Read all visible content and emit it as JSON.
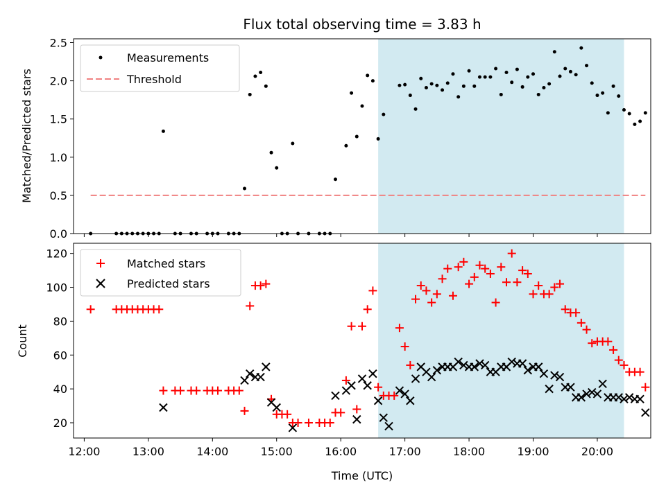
{
  "chart_data": [
    {
      "type": "scatter",
      "title": "Flux total observing time = 3.83 h",
      "ylabel": "Matched/Predicted stars",
      "xlim": [
        "11:50",
        "20:50"
      ],
      "ylim": [
        0,
        2.55
      ],
      "yticks": [
        0.0,
        0.5,
        1.0,
        1.5,
        2.0,
        2.5
      ],
      "ytick_labels": [
        "0.0",
        "0.5",
        "1.0",
        "1.5",
        "2.0",
        "2.5"
      ],
      "legend_position": "upper-left",
      "highlight_span": {
        "from": "16:35",
        "to": "20:25",
        "color": "#add8e6"
      },
      "series": [
        {
          "name": "Measurements",
          "marker": "dot",
          "color": "#000000",
          "points": [
            [
              "12:06",
              0
            ],
            [
              "12:30",
              0
            ],
            [
              "12:35",
              0
            ],
            [
              "12:40",
              0
            ],
            [
              "12:45",
              0
            ],
            [
              "12:50",
              0
            ],
            [
              "12:55",
              0
            ],
            [
              "13:00",
              0
            ],
            [
              "13:05",
              0
            ],
            [
              "13:10",
              0
            ],
            [
              "13:14",
              1.34
            ],
            [
              "13:25",
              0
            ],
            [
              "13:30",
              0
            ],
            [
              "13:40",
              0
            ],
            [
              "13:45",
              0
            ],
            [
              "13:55",
              0
            ],
            [
              "14:00",
              0
            ],
            [
              "14:05",
              0
            ],
            [
              "14:15",
              0
            ],
            [
              "14:20",
              0
            ],
            [
              "14:25",
              0
            ],
            [
              "14:30",
              0.59
            ],
            [
              "14:35",
              1.82
            ],
            [
              "14:40",
              2.06
            ],
            [
              "14:45",
              2.11
            ],
            [
              "14:50",
              1.93
            ],
            [
              "14:55",
              1.06
            ],
            [
              "15:00",
              0.86
            ],
            [
              "15:05",
              0
            ],
            [
              "15:10",
              0
            ],
            [
              "15:15",
              1.18
            ],
            [
              "15:20",
              0
            ],
            [
              "15:30",
              0
            ],
            [
              "15:40",
              0
            ],
            [
              "15:45",
              0
            ],
            [
              "15:50",
              0
            ],
            [
              "15:55",
              0.71
            ],
            [
              "16:05",
              1.15
            ],
            [
              "16:10",
              1.84
            ],
            [
              "16:15",
              1.27
            ],
            [
              "16:20",
              1.67
            ],
            [
              "16:25",
              2.07
            ],
            [
              "16:30",
              2.0
            ],
            [
              "16:35",
              1.24
            ],
            [
              "16:40",
              1.56
            ],
            [
              "16:55",
              1.94
            ],
            [
              "17:00",
              1.95
            ],
            [
              "17:05",
              1.81
            ],
            [
              "17:10",
              1.63
            ],
            [
              "17:15",
              2.03
            ],
            [
              "17:20",
              1.91
            ],
            [
              "17:25",
              1.96
            ],
            [
              "17:30",
              1.94
            ],
            [
              "17:35",
              1.88
            ],
            [
              "17:40",
              1.97
            ],
            [
              "17:45",
              2.09
            ],
            [
              "17:50",
              1.79
            ],
            [
              "17:55",
              1.93
            ],
            [
              "18:00",
              2.13
            ],
            [
              "18:05",
              1.93
            ],
            [
              "18:10",
              2.05
            ],
            [
              "18:15",
              2.05
            ],
            [
              "18:20",
              2.05
            ],
            [
              "18:25",
              2.16
            ],
            [
              "18:30",
              1.82
            ],
            [
              "18:35",
              2.11
            ],
            [
              "18:40",
              1.98
            ],
            [
              "18:45",
              2.15
            ],
            [
              "18:50",
              1.92
            ],
            [
              "18:55",
              2.05
            ],
            [
              "19:00",
              2.09
            ],
            [
              "19:05",
              1.82
            ],
            [
              "19:10",
              1.91
            ],
            [
              "19:15",
              1.96
            ],
            [
              "19:20",
              2.38
            ],
            [
              "19:25",
              2.06
            ],
            [
              "19:30",
              2.16
            ],
            [
              "19:35",
              2.12
            ],
            [
              "19:40",
              2.08
            ],
            [
              "19:45",
              2.43
            ],
            [
              "19:50",
              2.2
            ],
            [
              "19:55",
              1.97
            ],
            [
              "20:00",
              1.81
            ],
            [
              "20:05",
              1.84
            ],
            [
              "20:10",
              1.58
            ],
            [
              "20:15",
              1.93
            ],
            [
              "20:20",
              1.8
            ],
            [
              "20:25",
              1.62
            ],
            [
              "20:30",
              1.57
            ],
            [
              "20:35",
              1.43
            ],
            [
              "20:40",
              1.47
            ],
            [
              "20:45",
              1.58
            ]
          ]
        },
        {
          "name": "Threshold",
          "style": "dashed-line",
          "color": "#f08080",
          "x_range": [
            "12:06",
            "20:45"
          ],
          "y": 0.5
        }
      ]
    },
    {
      "type": "scatter",
      "ylabel": "Count",
      "xlabel": "Time (UTC)",
      "xlim": [
        "11:50",
        "20:50"
      ],
      "xticks": [
        "12:00",
        "13:00",
        "14:00",
        "15:00",
        "16:00",
        "17:00",
        "18:00",
        "19:00",
        "20:00"
      ],
      "ylim": [
        11,
        126
      ],
      "yticks": [
        20,
        40,
        60,
        80,
        100,
        120
      ],
      "ytick_labels": [
        "20",
        "40",
        "60",
        "80",
        "100",
        "120"
      ],
      "legend_position": "upper-left",
      "highlight_span": {
        "from": "16:35",
        "to": "20:25",
        "color": "#add8e6"
      },
      "series": [
        {
          "name": "Matched stars",
          "marker": "plus",
          "color": "#ff0000",
          "points": [
            [
              "12:06",
              87
            ],
            [
              "12:30",
              87
            ],
            [
              "12:35",
              87
            ],
            [
              "12:40",
              87
            ],
            [
              "12:45",
              87
            ],
            [
              "12:50",
              87
            ],
            [
              "12:55",
              87
            ],
            [
              "13:00",
              87
            ],
            [
              "13:05",
              87
            ],
            [
              "13:10",
              87
            ],
            [
              "13:14",
              39
            ],
            [
              "13:25",
              39
            ],
            [
              "13:30",
              39
            ],
            [
              "13:40",
              39
            ],
            [
              "13:45",
              39
            ],
            [
              "13:55",
              39
            ],
            [
              "14:00",
              39
            ],
            [
              "14:05",
              39
            ],
            [
              "14:15",
              39
            ],
            [
              "14:20",
              39
            ],
            [
              "14:25",
              39
            ],
            [
              "14:30",
              27
            ],
            [
              "14:35",
              89
            ],
            [
              "14:40",
              101
            ],
            [
              "14:45",
              101
            ],
            [
              "14:50",
              102
            ],
            [
              "14:55",
              34
            ],
            [
              "15:00",
              25
            ],
            [
              "15:05",
              25
            ],
            [
              "15:10",
              25
            ],
            [
              "15:15",
              20
            ],
            [
              "15:20",
              20
            ],
            [
              "15:30",
              20
            ],
            [
              "15:40",
              20
            ],
            [
              "15:45",
              20
            ],
            [
              "15:50",
              20
            ],
            [
              "15:55",
              26
            ],
            [
              "16:00",
              26
            ],
            [
              "16:05",
              45
            ],
            [
              "16:10",
              77
            ],
            [
              "16:15",
              28
            ],
            [
              "16:20",
              77
            ],
            [
              "16:25",
              87
            ],
            [
              "16:30",
              98
            ],
            [
              "16:35",
              41
            ],
            [
              "16:40",
              36
            ],
            [
              "16:45",
              36
            ],
            [
              "16:50",
              36
            ],
            [
              "16:55",
              76
            ],
            [
              "17:00",
              65
            ],
            [
              "17:05",
              54
            ],
            [
              "17:10",
              93
            ],
            [
              "17:15",
              101
            ],
            [
              "17:20",
              98
            ],
            [
              "17:25",
              91
            ],
            [
              "17:30",
              96
            ],
            [
              "17:35",
              105
            ],
            [
              "17:40",
              111
            ],
            [
              "17:45",
              95
            ],
            [
              "17:50",
              112
            ],
            [
              "17:55",
              115
            ],
            [
              "18:00",
              102
            ],
            [
              "18:05",
              106
            ],
            [
              "18:10",
              113
            ],
            [
              "18:15",
              111
            ],
            [
              "18:20",
              108
            ],
            [
              "18:25",
              91
            ],
            [
              "18:30",
              112
            ],
            [
              "18:35",
              103
            ],
            [
              "18:40",
              120
            ],
            [
              "18:45",
              103
            ],
            [
              "18:50",
              110
            ],
            [
              "18:55",
              108
            ],
            [
              "19:00",
              96
            ],
            [
              "19:05",
              101
            ],
            [
              "19:10",
              96
            ],
            [
              "19:15",
              96
            ],
            [
              "19:20",
              100
            ],
            [
              "19:25",
              102
            ],
            [
              "19:30",
              87
            ],
            [
              "19:35",
              85
            ],
            [
              "19:40",
              85
            ],
            [
              "19:45",
              79
            ],
            [
              "19:50",
              75
            ],
            [
              "19:55",
              67
            ],
            [
              "20:00",
              68
            ],
            [
              "20:05",
              68
            ],
            [
              "20:10",
              68
            ],
            [
              "20:15",
              63
            ],
            [
              "20:20",
              57
            ],
            [
              "20:25",
              54
            ],
            [
              "20:30",
              50
            ],
            [
              "20:35",
              50
            ],
            [
              "20:40",
              50
            ],
            [
              "20:45",
              41
            ]
          ]
        },
        {
          "name": "Predicted stars",
          "marker": "x",
          "color": "#000000",
          "points": [
            [
              "13:14",
              29
            ],
            [
              "14:30",
              45
            ],
            [
              "14:35",
              49
            ],
            [
              "14:40",
              47
            ],
            [
              "14:45",
              47
            ],
            [
              "14:50",
              53
            ],
            [
              "14:55",
              32
            ],
            [
              "15:00",
              29
            ],
            [
              "15:15",
              17
            ],
            [
              "15:55",
              36
            ],
            [
              "16:05",
              39
            ],
            [
              "16:10",
              42
            ],
            [
              "16:15",
              22
            ],
            [
              "16:20",
              46
            ],
            [
              "16:25",
              42
            ],
            [
              "16:30",
              49
            ],
            [
              "16:35",
              33
            ],
            [
              "16:40",
              23
            ],
            [
              "16:45",
              18
            ],
            [
              "16:55",
              39
            ],
            [
              "17:00",
              37
            ],
            [
              "17:05",
              33
            ],
            [
              "17:10",
              46
            ],
            [
              "17:15",
              53
            ],
            [
              "17:20",
              50
            ],
            [
              "17:25",
              47
            ],
            [
              "17:30",
              51
            ],
            [
              "17:35",
              53
            ],
            [
              "17:40",
              53
            ],
            [
              "17:45",
              53
            ],
            [
              "17:50",
              56
            ],
            [
              "17:55",
              54
            ],
            [
              "18:00",
              53
            ],
            [
              "18:05",
              53
            ],
            [
              "18:10",
              55
            ],
            [
              "18:15",
              54
            ],
            [
              "18:20",
              50
            ],
            [
              "18:25",
              50
            ],
            [
              "18:30",
              53
            ],
            [
              "18:35",
              53
            ],
            [
              "18:40",
              56
            ],
            [
              "18:45",
              55
            ],
            [
              "18:50",
              55
            ],
            [
              "18:55",
              51
            ],
            [
              "19:00",
              53
            ],
            [
              "19:05",
              53
            ],
            [
              "19:10",
              49
            ],
            [
              "19:15",
              40
            ],
            [
              "19:20",
              48
            ],
            [
              "19:25",
              47
            ],
            [
              "19:30",
              41
            ],
            [
              "19:35",
              41
            ],
            [
              "19:40",
              35
            ],
            [
              "19:45",
              35
            ],
            [
              "19:50",
              37
            ],
            [
              "19:55",
              38
            ],
            [
              "20:00",
              37
            ],
            [
              "20:05",
              43
            ],
            [
              "20:10",
              35
            ],
            [
              "20:15",
              35
            ],
            [
              "20:20",
              35
            ],
            [
              "20:25",
              34
            ],
            [
              "20:30",
              35
            ],
            [
              "20:35",
              34
            ],
            [
              "20:40",
              34
            ],
            [
              "20:45",
              26
            ]
          ]
        }
      ]
    }
  ]
}
